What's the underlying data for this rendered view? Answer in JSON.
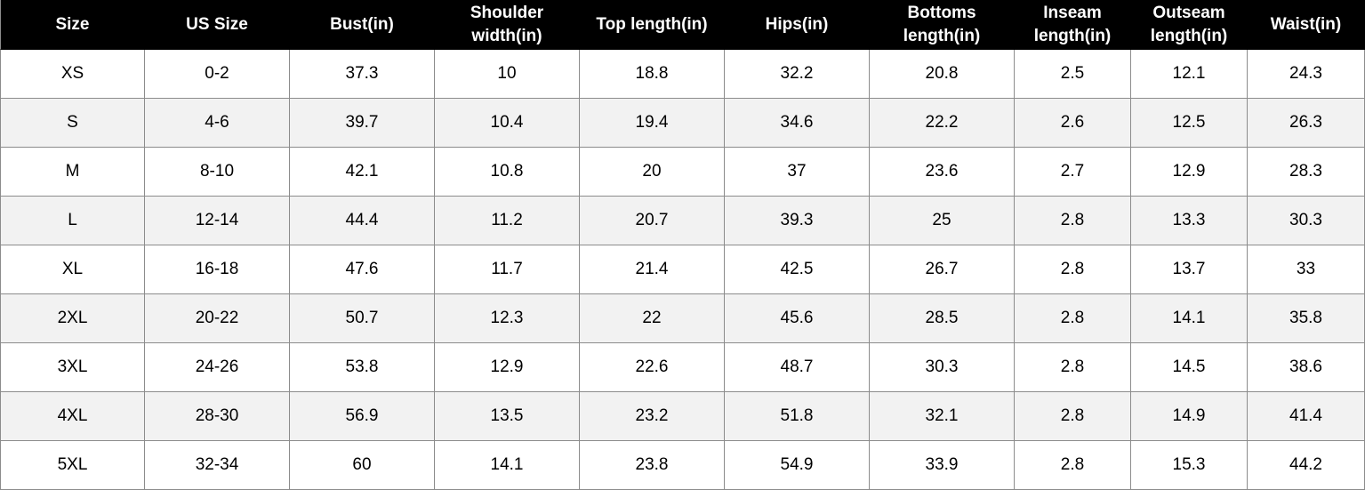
{
  "table": {
    "header": [
      "Size",
      "US Size",
      "Bust(in)",
      "Shoulder width(in)",
      "Top length(in)",
      "Hips(in)",
      "Bottoms length(in)",
      "Inseam length(in)",
      "Outseam length(in)",
      "Waist(in)"
    ],
    "rows": [
      [
        "XS",
        "0-2",
        "37.3",
        "10",
        "18.8",
        "32.2",
        "20.8",
        "2.5",
        "12.1",
        "24.3"
      ],
      [
        "S",
        "4-6",
        "39.7",
        "10.4",
        "19.4",
        "34.6",
        "22.2",
        "2.6",
        "12.5",
        "26.3"
      ],
      [
        "M",
        "8-10",
        "42.1",
        "10.8",
        "20",
        "37",
        "23.6",
        "2.7",
        "12.9",
        "28.3"
      ],
      [
        "L",
        "12-14",
        "44.4",
        "11.2",
        "20.7",
        "39.3",
        "25",
        "2.8",
        "13.3",
        "30.3"
      ],
      [
        "XL",
        "16-18",
        "47.6",
        "11.7",
        "21.4",
        "42.5",
        "26.7",
        "2.8",
        "13.7",
        "33"
      ],
      [
        "2XL",
        "20-22",
        "50.7",
        "12.3",
        "22",
        "45.6",
        "28.5",
        "2.8",
        "14.1",
        "35.8"
      ],
      [
        "3XL",
        "24-26",
        "53.8",
        "12.9",
        "22.6",
        "48.7",
        "30.3",
        "2.8",
        "14.5",
        "38.6"
      ],
      [
        "4XL",
        "28-30",
        "56.9",
        "13.5",
        "23.2",
        "51.8",
        "32.1",
        "2.8",
        "14.9",
        "41.4"
      ],
      [
        "5XL",
        "32-34",
        "60",
        "14.1",
        "23.8",
        "54.9",
        "33.9",
        "2.8",
        "15.3",
        "44.2"
      ]
    ]
  }
}
